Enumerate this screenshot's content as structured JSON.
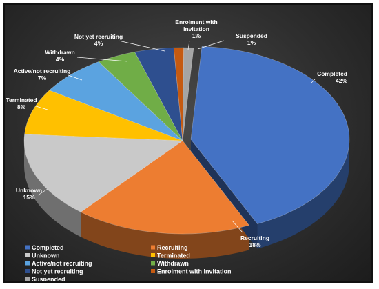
{
  "chart_data": {
    "type": "pie",
    "title": "",
    "legend_position": "bottom",
    "series": [
      {
        "name": "Completed",
        "value": 42,
        "label": "42%",
        "color": "#4472c4"
      },
      {
        "name": "Recruiting",
        "value": 18,
        "label": "18%",
        "color": "#ed7d31"
      },
      {
        "name": "Unknown",
        "value": 15,
        "label": "15%",
        "color": "#c9c9c9"
      },
      {
        "name": "Terminated",
        "value": 8,
        "label": "8%",
        "color": "#ffc000"
      },
      {
        "name": "Active/not recruiting",
        "value": 7,
        "label": "7%",
        "color": "#5ba3e0"
      },
      {
        "name": "Withdrawn",
        "value": 4,
        "label": "4%",
        "color": "#70ad47"
      },
      {
        "name": "Not yet recruiting",
        "value": 4,
        "label": "4%",
        "color": "#2e4f8f"
      },
      {
        "name": "Enrolment with invitation",
        "value": 1,
        "label": "1%",
        "color": "#c55a11"
      },
      {
        "name": "Suspended",
        "value": 1,
        "label": "1%",
        "color": "#a5a5a5"
      }
    ]
  }
}
